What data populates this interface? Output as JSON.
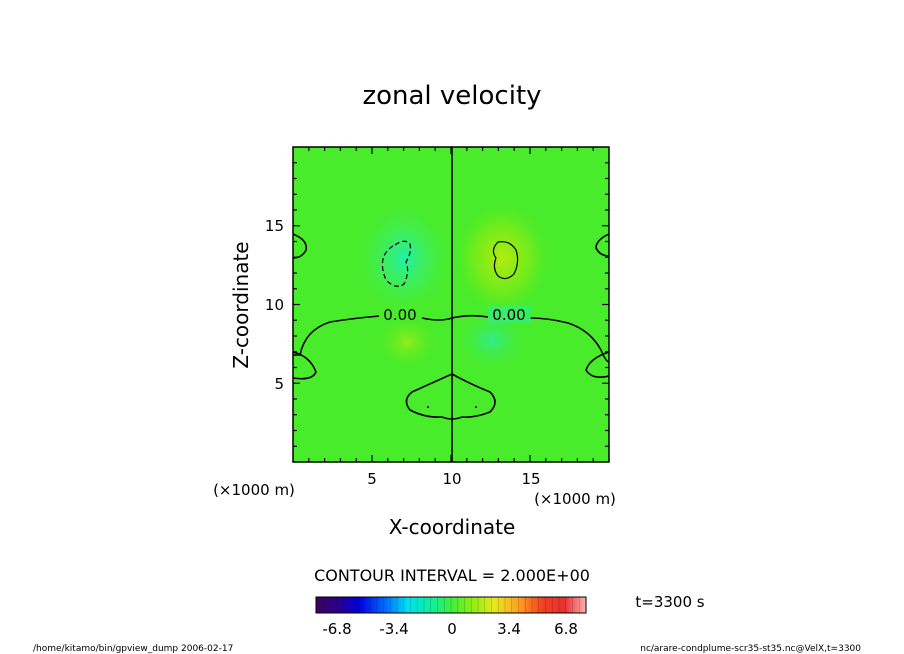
{
  "chart_data": {
    "type": "heatmap",
    "title": "zonal velocity",
    "xlabel": "X-coordinate",
    "ylabel": "Z-coordinate",
    "xlim": [
      0,
      20
    ],
    "ylim": [
      0,
      20
    ],
    "x_ticks": [
      "5",
      "10",
      "15"
    ],
    "y_ticks": [
      "5",
      "10",
      "15"
    ],
    "x_unit": "(×1000 m)",
    "y_unit": "(×1000 m)",
    "contour_labels": [
      "0.00",
      "0.00"
    ],
    "contour_interval": "CONTOUR INTERVAL = 2.000E+00",
    "colorbar": {
      "min": -8.5,
      "max": 8.5,
      "ticks": [
        "-6.8",
        "-3.4",
        "0",
        "3.4",
        "6.8"
      ]
    },
    "field_anomalies": [
      {
        "x": 7.0,
        "z": 12.5,
        "value": -2.5
      },
      {
        "x": 13.5,
        "z": 12.8,
        "value": 2.6
      },
      {
        "x": 12.5,
        "z": 7.5,
        "value": -1.0
      },
      {
        "x": 7.5,
        "z": 7.5,
        "value": 1.0
      }
    ]
  },
  "time_label": "t=3300 s",
  "footer": {
    "left": "/home/kitamo/bin/gpview_dump  2006-02-17",
    "right": "nc/arare-condplume-scr35-st35.nc@VelX,t=3300"
  }
}
